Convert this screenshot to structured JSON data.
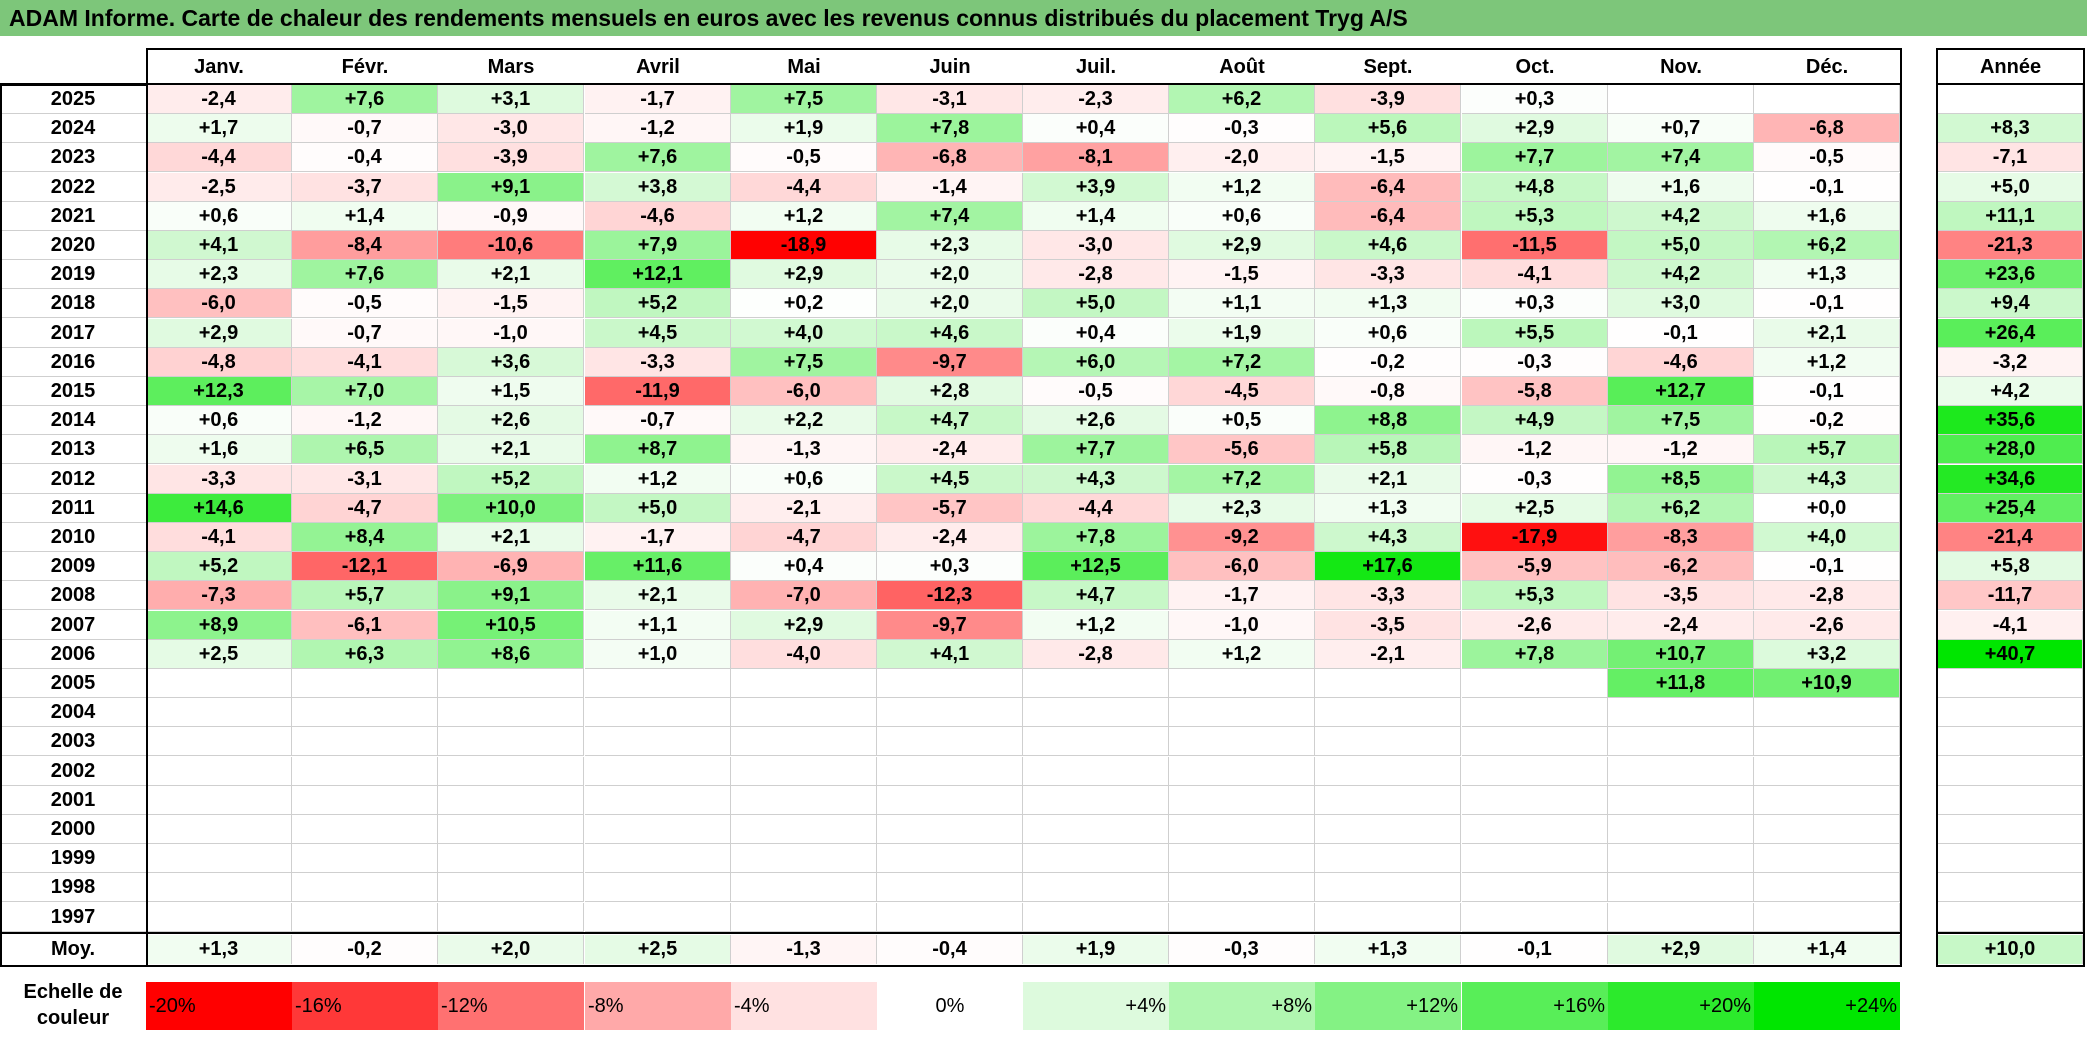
{
  "title": "ADAM Informe. Carte de chaleur des rendements mensuels en euros avec les revenus connus distribués du placement Tryg A/S",
  "chart_data": {
    "type": "heatmap",
    "months": [
      "Janv.",
      "Févr.",
      "Mars",
      "Avril",
      "Mai",
      "Juin",
      "Juil.",
      "Août",
      "Sept.",
      "Oct.",
      "Nov.",
      "Déc."
    ],
    "year_label": "Année",
    "rows": [
      {
        "year": "2025",
        "values": [
          "-2,4",
          "+7,6",
          "+3,1",
          "-1,7",
          "+7,5",
          "-3,1",
          "-2,3",
          "+6,2",
          "-3,9",
          "+0,3",
          "",
          ""
        ],
        "annual": ""
      },
      {
        "year": "2024",
        "values": [
          "+1,7",
          "-0,7",
          "-3,0",
          "-1,2",
          "+1,9",
          "+7,8",
          "+0,4",
          "-0,3",
          "+5,6",
          "+2,9",
          "+0,7",
          "-6,8"
        ],
        "annual": "+8,3"
      },
      {
        "year": "2023",
        "values": [
          "-4,4",
          "-0,4",
          "-3,9",
          "+7,6",
          "-0,5",
          "-6,8",
          "-8,1",
          "-2,0",
          "-1,5",
          "+7,7",
          "+7,4",
          "-0,5"
        ],
        "annual": "-7,1"
      },
      {
        "year": "2022",
        "values": [
          "-2,5",
          "-3,7",
          "+9,1",
          "+3,8",
          "-4,4",
          "-1,4",
          "+3,9",
          "+1,2",
          "-6,4",
          "+4,8",
          "+1,6",
          "-0,1"
        ],
        "annual": "+5,0"
      },
      {
        "year": "2021",
        "values": [
          "+0,6",
          "+1,4",
          "-0,9",
          "-4,6",
          "+1,2",
          "+7,4",
          "+1,4",
          "+0,6",
          "-6,4",
          "+5,3",
          "+4,2",
          "+1,6"
        ],
        "annual": "+11,1"
      },
      {
        "year": "2020",
        "values": [
          "+4,1",
          "-8,4",
          "-10,6",
          "+7,9",
          "-18,9",
          "+2,3",
          "-3,0",
          "+2,9",
          "+4,6",
          "-11,5",
          "+5,0",
          "+6,2"
        ],
        "annual": "-21,3"
      },
      {
        "year": "2019",
        "values": [
          "+2,3",
          "+7,6",
          "+2,1",
          "+12,1",
          "+2,9",
          "+2,0",
          "-2,8",
          "-1,5",
          "-3,3",
          "-4,1",
          "+4,2",
          "+1,3"
        ],
        "annual": "+23,6"
      },
      {
        "year": "2018",
        "values": [
          "-6,0",
          "-0,5",
          "-1,5",
          "+5,2",
          "+0,2",
          "+2,0",
          "+5,0",
          "+1,1",
          "+1,3",
          "+0,3",
          "+3,0",
          "-0,1"
        ],
        "annual": "+9,4"
      },
      {
        "year": "2017",
        "values": [
          "+2,9",
          "-0,7",
          "-1,0",
          "+4,5",
          "+4,0",
          "+4,6",
          "+0,4",
          "+1,9",
          "+0,6",
          "+5,5",
          "-0,1",
          "+2,1"
        ],
        "annual": "+26,4"
      },
      {
        "year": "2016",
        "values": [
          "-4,8",
          "-4,1",
          "+3,6",
          "-3,3",
          "+7,5",
          "-9,7",
          "+6,0",
          "+7,2",
          "-0,2",
          "-0,3",
          "-4,6",
          "+1,2"
        ],
        "annual": "-3,2"
      },
      {
        "year": "2015",
        "values": [
          "+12,3",
          "+7,0",
          "+1,5",
          "-11,9",
          "-6,0",
          "+2,8",
          "-0,5",
          "-4,5",
          "-0,8",
          "-5,8",
          "+12,7",
          "-0,1"
        ],
        "annual": "+4,2"
      },
      {
        "year": "2014",
        "values": [
          "+0,6",
          "-1,2",
          "+2,6",
          "-0,7",
          "+2,2",
          "+4,7",
          "+2,6",
          "+0,5",
          "+8,8",
          "+4,9",
          "+7,5",
          "-0,2"
        ],
        "annual": "+35,6"
      },
      {
        "year": "2013",
        "values": [
          "+1,6",
          "+6,5",
          "+2,1",
          "+8,7",
          "-1,3",
          "-2,4",
          "+7,7",
          "-5,6",
          "+5,8",
          "-1,2",
          "-1,2",
          "+5,7"
        ],
        "annual": "+28,0"
      },
      {
        "year": "2012",
        "values": [
          "-3,3",
          "-3,1",
          "+5,2",
          "+1,2",
          "+0,6",
          "+4,5",
          "+4,3",
          "+7,2",
          "+2,1",
          "-0,3",
          "+8,5",
          "+4,3"
        ],
        "annual": "+34,6"
      },
      {
        "year": "2011",
        "values": [
          "+14,6",
          "-4,7",
          "+10,0",
          "+5,0",
          "-2,1",
          "-5,7",
          "-4,4",
          "+2,3",
          "+1,3",
          "+2,5",
          "+6,2",
          "+0,0"
        ],
        "annual": "+25,4"
      },
      {
        "year": "2010",
        "values": [
          "-4,1",
          "+8,4",
          "+2,1",
          "-1,7",
          "-4,7",
          "-2,4",
          "+7,8",
          "-9,2",
          "+4,3",
          "-17,9",
          "-8,3",
          "+4,0"
        ],
        "annual": "-21,4"
      },
      {
        "year": "2009",
        "values": [
          "+5,2",
          "-12,1",
          "-6,9",
          "+11,6",
          "+0,4",
          "+0,3",
          "+12,5",
          "-6,0",
          "+17,6",
          "-5,9",
          "-6,2",
          "-0,1"
        ],
        "annual": "+5,8"
      },
      {
        "year": "2008",
        "values": [
          "-7,3",
          "+5,7",
          "+9,1",
          "+2,1",
          "-7,0",
          "-12,3",
          "+4,7",
          "-1,7",
          "-3,3",
          "+5,3",
          "-3,5",
          "-2,8"
        ],
        "annual": "-11,7"
      },
      {
        "year": "2007",
        "values": [
          "+8,9",
          "-6,1",
          "+10,5",
          "+1,1",
          "+2,9",
          "-9,7",
          "+1,2",
          "-1,0",
          "-3,5",
          "-2,6",
          "-2,4",
          "-2,6"
        ],
        "annual": "-4,1"
      },
      {
        "year": "2006",
        "values": [
          "+2,5",
          "+6,3",
          "+8,6",
          "+1,0",
          "-4,0",
          "+4,1",
          "-2,8",
          "+1,2",
          "-2,1",
          "+7,8",
          "+10,7",
          "+3,2"
        ],
        "annual": "+40,7"
      },
      {
        "year": "2005",
        "values": [
          "",
          "",
          "",
          "",
          "",
          "",
          "",
          "",
          "",
          "",
          "+11,8",
          "+10,9"
        ],
        "annual": ""
      },
      {
        "year": "2004",
        "values": [
          "",
          "",
          "",
          "",
          "",
          "",
          "",
          "",
          "",
          "",
          "",
          ""
        ],
        "annual": ""
      },
      {
        "year": "2003",
        "values": [
          "",
          "",
          "",
          "",
          "",
          "",
          "",
          "",
          "",
          "",
          "",
          ""
        ],
        "annual": ""
      },
      {
        "year": "2002",
        "values": [
          "",
          "",
          "",
          "",
          "",
          "",
          "",
          "",
          "",
          "",
          "",
          ""
        ],
        "annual": ""
      },
      {
        "year": "2001",
        "values": [
          "",
          "",
          "",
          "",
          "",
          "",
          "",
          "",
          "",
          "",
          "",
          ""
        ],
        "annual": ""
      },
      {
        "year": "2000",
        "values": [
          "",
          "",
          "",
          "",
          "",
          "",
          "",
          "",
          "",
          "",
          "",
          ""
        ],
        "annual": ""
      },
      {
        "year": "1999",
        "values": [
          "",
          "",
          "",
          "",
          "",
          "",
          "",
          "",
          "",
          "",
          "",
          ""
        ],
        "annual": ""
      },
      {
        "year": "1998",
        "values": [
          "",
          "",
          "",
          "",
          "",
          "",
          "",
          "",
          "",
          "",
          "",
          ""
        ],
        "annual": ""
      },
      {
        "year": "1997",
        "values": [
          "",
          "",
          "",
          "",
          "",
          "",
          "",
          "",
          "",
          "",
          "",
          ""
        ],
        "annual": ""
      }
    ],
    "average": {
      "label": "Moy.",
      "values": [
        "+1,3",
        "-0,2",
        "+2,0",
        "+2,5",
        "-1,3",
        "-0,4",
        "+1,9",
        "-0,3",
        "+1,3",
        "-0,1",
        "+2,9",
        "+1,4"
      ],
      "annual": "+10,0"
    },
    "scale": {
      "label": "Echelle de couleur",
      "steps": [
        "-20%",
        "-16%",
        "-12%",
        "-8%",
        "-4%",
        "0%",
        "+4%",
        "+8%",
        "+12%",
        "+16%",
        "+20%",
        "+24%"
      ]
    },
    "colors": {
      "title_bg": "#7dc67a",
      "negative_max": "#ff0000",
      "positive_max": "#00e000",
      "neutral": "#ffffff"
    }
  }
}
